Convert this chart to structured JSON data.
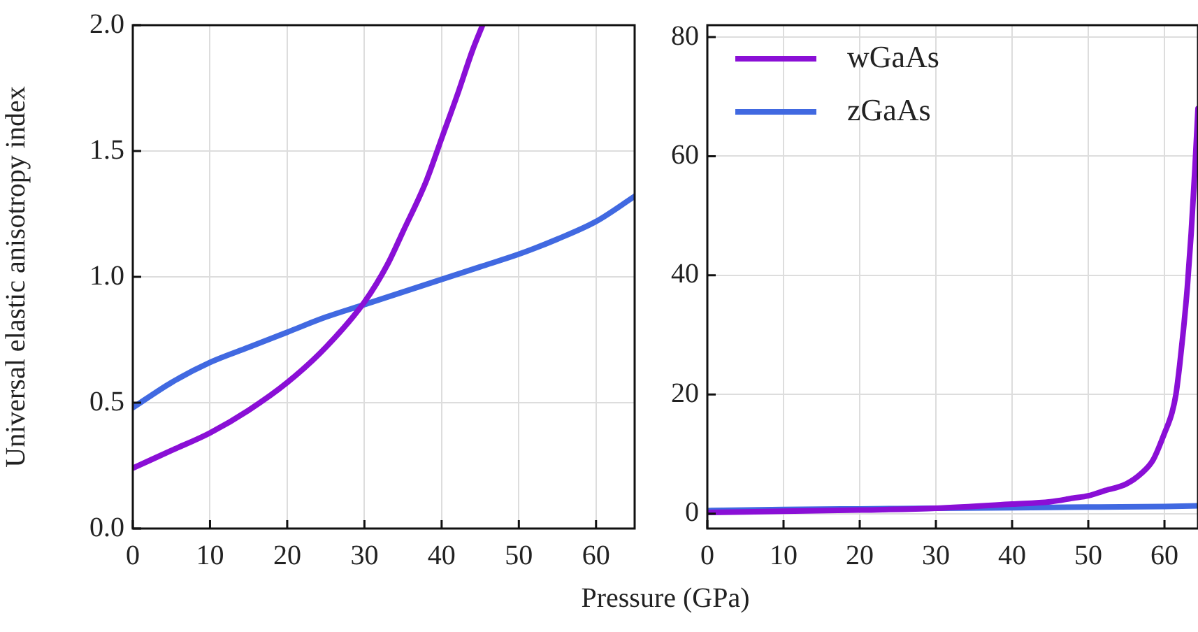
{
  "chart_data": [
    {
      "type": "line",
      "xlabel": "Pressure (GPa)",
      "ylabel": "Universal elastic anisotropy index",
      "xlim": [
        0,
        65
      ],
      "ylim": [
        0,
        2
      ],
      "xticks": [
        0,
        10,
        20,
        30,
        40,
        50,
        60
      ],
      "yticks": [
        {
          "value": 0,
          "label": "0.0"
        },
        {
          "value": 0.5,
          "label": "0.5"
        },
        {
          "value": 1,
          "label": "1.0"
        },
        {
          "value": 1.5,
          "label": "1.5"
        },
        {
          "value": 2,
          "label": "2.0"
        }
      ],
      "grid": true,
      "legend": false,
      "marker": "none",
      "line_style": "solid",
      "series": [
        {
          "color": "#8a0fd6",
          "x": [
            0,
            5,
            10,
            15,
            20,
            25,
            30,
            33,
            35,
            38,
            40,
            42,
            44,
            45.3
          ],
          "values": [
            0.24,
            0.31,
            0.38,
            0.47,
            0.58,
            0.72,
            0.9,
            1.05,
            1.18,
            1.38,
            1.55,
            1.72,
            1.9,
            2.0
          ]
        },
        {
          "color": "#4169e1",
          "x": [
            0,
            5,
            10,
            15,
            20,
            25,
            30,
            35,
            40,
            45,
            50,
            55,
            60,
            65
          ],
          "values": [
            0.48,
            0.58,
            0.66,
            0.72,
            0.78,
            0.84,
            0.89,
            0.94,
            0.99,
            1.04,
            1.09,
            1.15,
            1.22,
            1.32
          ]
        }
      ]
    },
    {
      "type": "line",
      "xlim": [
        0,
        64.4
      ],
      "ylim": [
        -2.5,
        82
      ],
      "xticks": [
        0,
        10,
        20,
        30,
        40,
        50,
        60
      ],
      "yticks": [
        0,
        20,
        40,
        60,
        80
      ],
      "grid": true,
      "legend": "top left",
      "marker": "none",
      "line_style": "solid",
      "series": [
        {
          "name": "wGaAs",
          "color": "#8a0fd6",
          "x": [
            0,
            10,
            20,
            30,
            40,
            45,
            48,
            50,
            52,
            55,
            57,
            58.5,
            60,
            61,
            61.5,
            62,
            62.5,
            63,
            63.5,
            64,
            64.4
          ],
          "values": [
            0.2,
            0.4,
            0.6,
            0.9,
            1.6,
            2,
            2.6,
            3,
            3.8,
            5,
            6.8,
            9,
            13.5,
            17,
            20,
            25,
            31,
            38,
            47,
            58,
            68
          ]
        },
        {
          "name": "zGaAs",
          "color": "#4169e1",
          "x": [
            0,
            10,
            20,
            30,
            40,
            50,
            60,
            64.4
          ],
          "values": [
            0.5,
            0.7,
            0.8,
            0.9,
            1,
            1.1,
            1.2,
            1.3
          ]
        }
      ]
    }
  ]
}
